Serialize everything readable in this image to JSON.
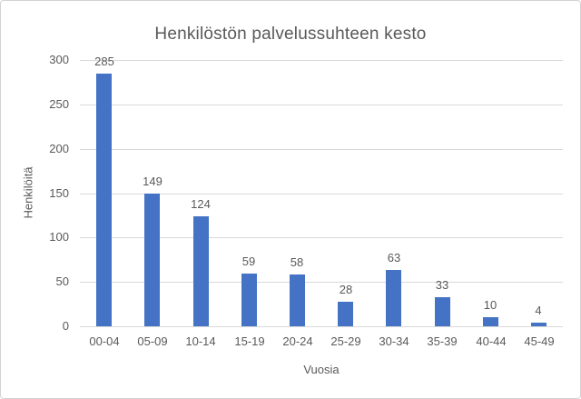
{
  "chart_data": {
    "type": "bar",
    "title": "Henkilöstön palvelussuhteen kesto",
    "xlabel": "Vuosia",
    "ylabel": "Henkilöitä",
    "categories": [
      "00-04",
      "05-09",
      "10-14",
      "15-19",
      "20-24",
      "25-29",
      "30-34",
      "35-39",
      "40-44",
      "45-49"
    ],
    "values": [
      285,
      149,
      124,
      59,
      58,
      28,
      63,
      33,
      10,
      4
    ],
    "ylim": [
      0,
      300
    ],
    "yticks": [
      0,
      50,
      100,
      150,
      200,
      250,
      300
    ],
    "grid": true,
    "legend": "none",
    "data_labels": true,
    "colors": {
      "bar_fill": "#4472c4",
      "text": "#595959",
      "gridline": "#d9d9d9",
      "frame_border": "#d3d3d3",
      "background": "#ffffff"
    }
  }
}
